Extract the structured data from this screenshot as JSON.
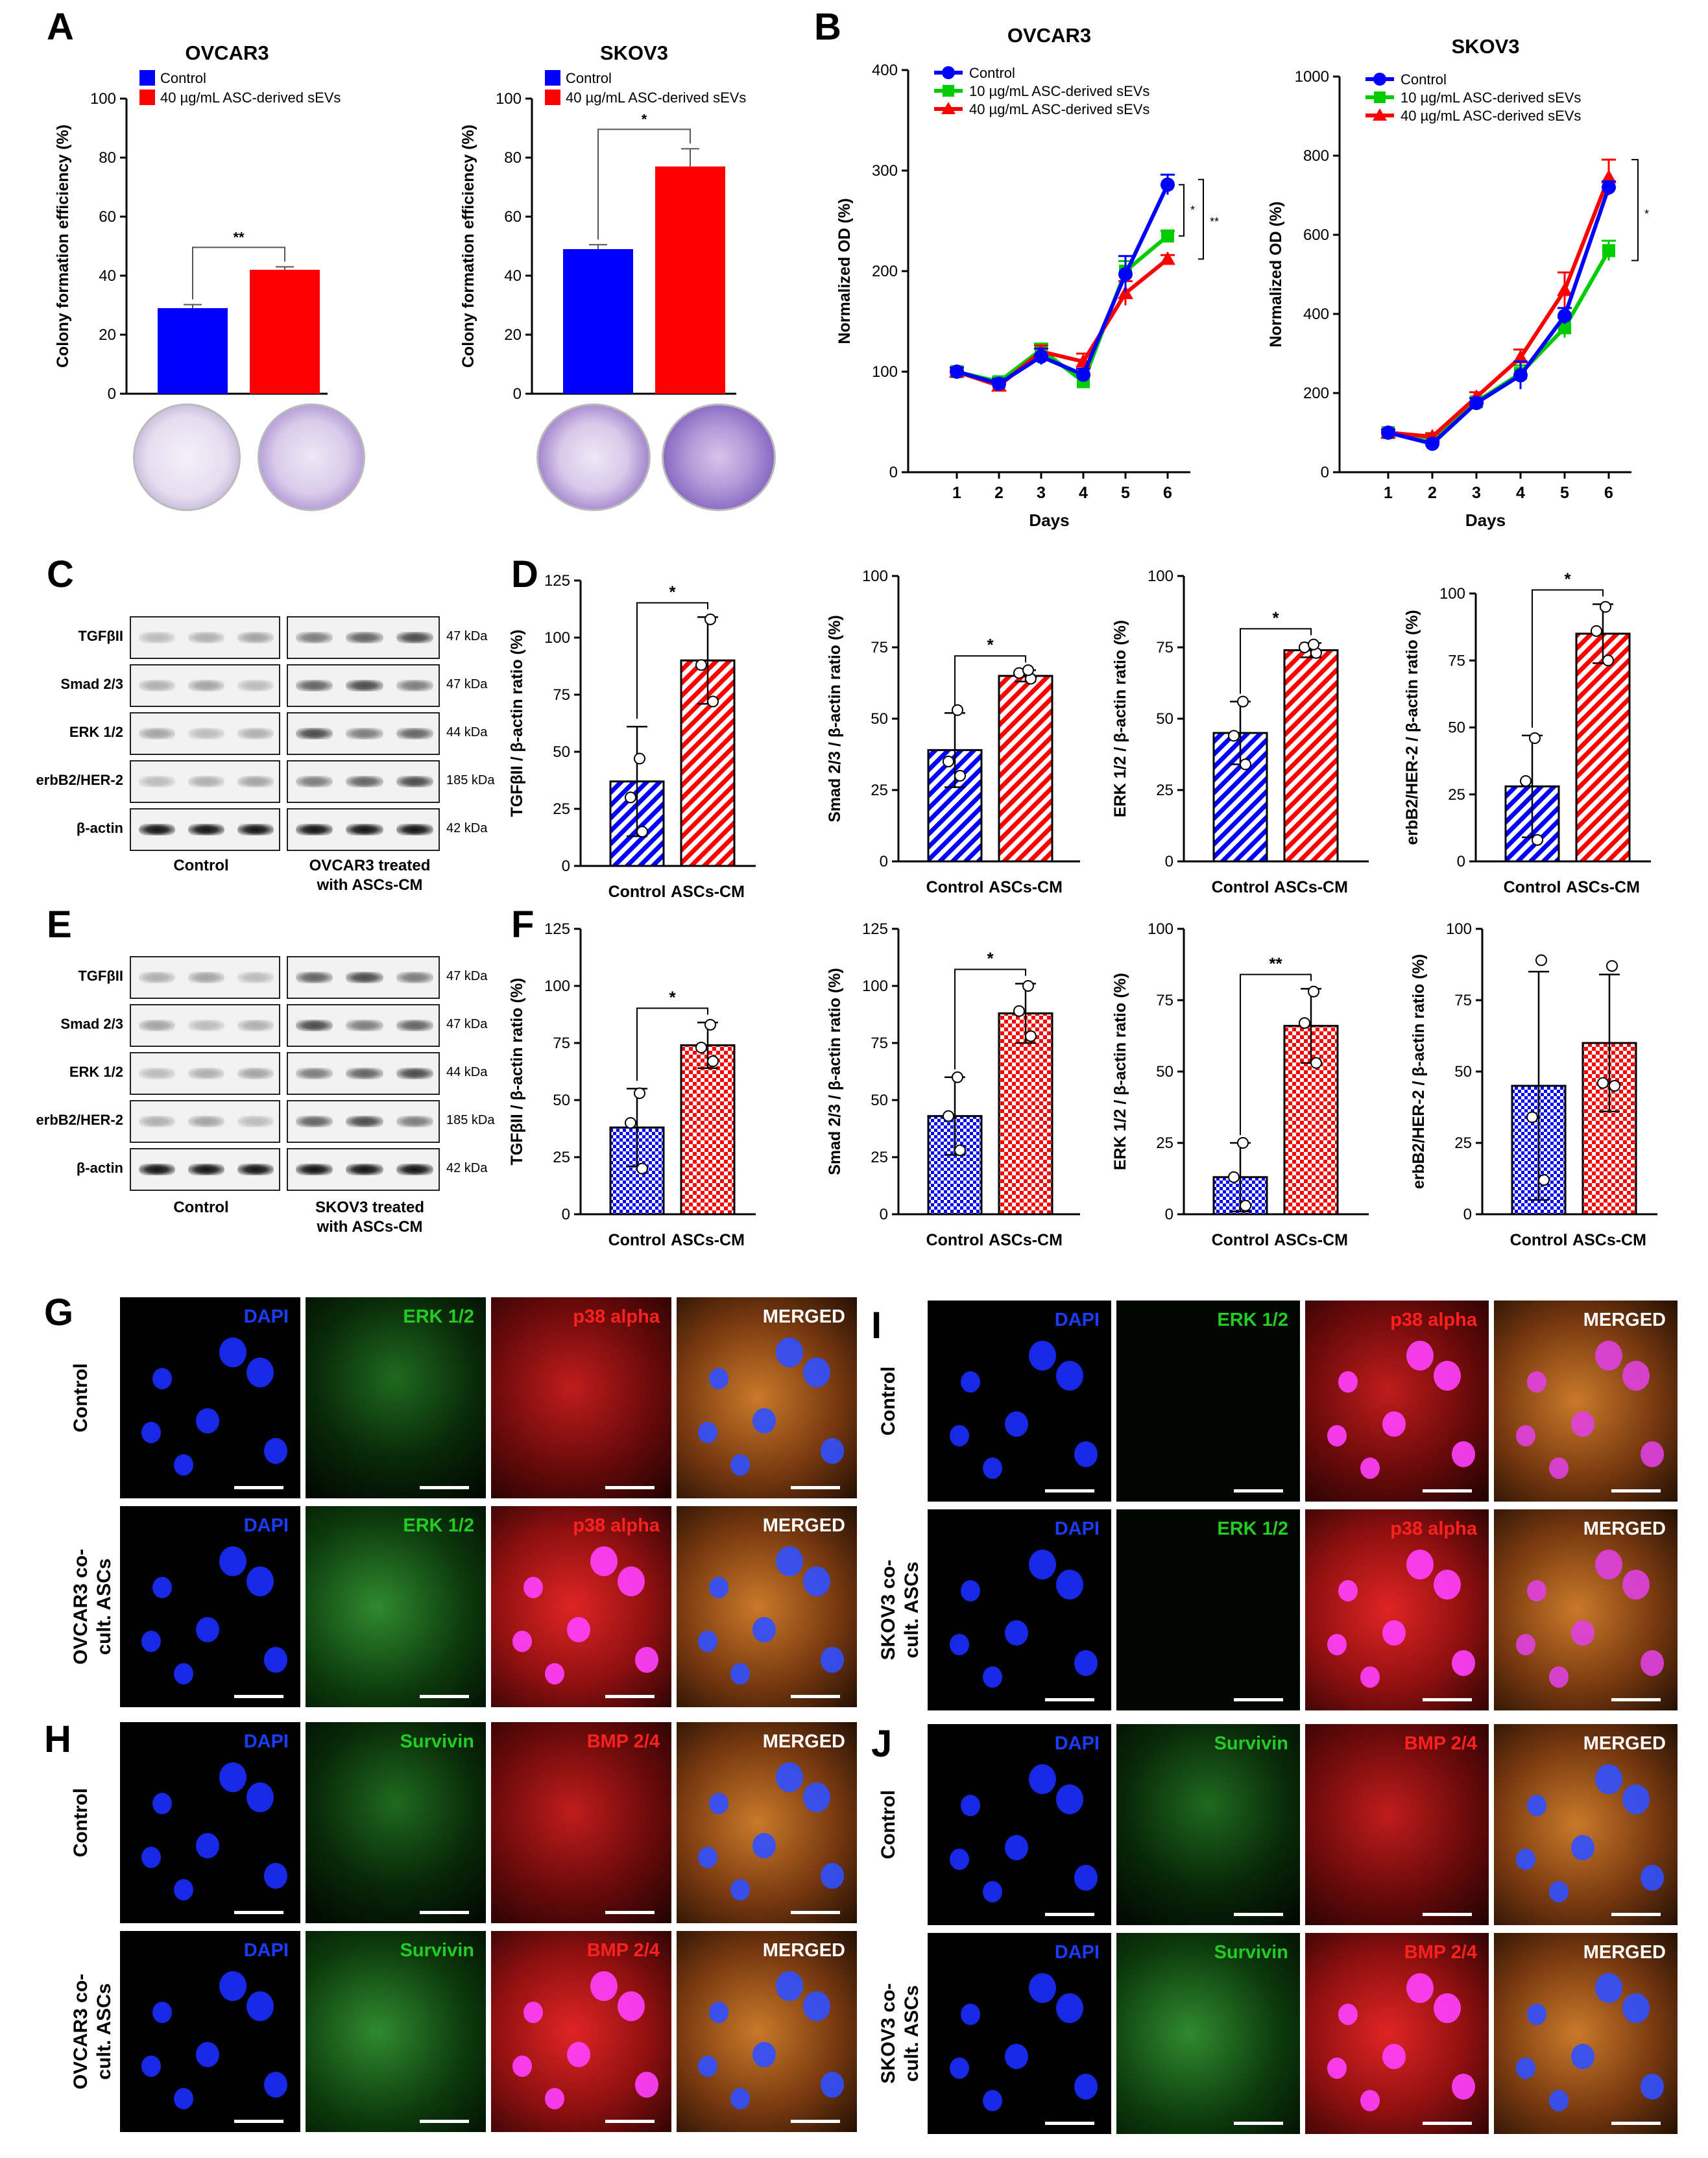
{
  "panel_letters": [
    "A",
    "B",
    "C",
    "D",
    "E",
    "F",
    "G",
    "H",
    "I",
    "J"
  ],
  "colors": {
    "control": "#0000ff",
    "treated": "#ff0000",
    "mid": "#00cc00",
    "dapi": "#1a3cff",
    "erk": "#22cc22",
    "p38": "#ff2020",
    "merged": "#ffffff"
  },
  "chart_data": [
    {
      "id": "A1",
      "type": "bar",
      "title": "OVCAR3",
      "ylabel": "Colony formation efficiency (%)",
      "ylim": [
        0,
        100
      ],
      "yticks": [
        0,
        20,
        40,
        60,
        80,
        100
      ],
      "legend": [
        "Control",
        "40 µg/mL ASC-derived sEVs"
      ],
      "categories": [
        "Control",
        "40 µg/mL ASC-derived sEVs"
      ],
      "values": [
        29,
        42
      ],
      "errors": [
        1.2,
        1.0
      ],
      "significance": "**"
    },
    {
      "id": "A2",
      "type": "bar",
      "title": "SKOV3",
      "ylabel": "Colony formation efficiency (%)",
      "ylim": [
        0,
        100
      ],
      "yticks": [
        0,
        20,
        40,
        60,
        80,
        100
      ],
      "legend": [
        "Control",
        "40 µg/mL ASC-derived sEVs"
      ],
      "categories": [
        "Control",
        "40 µg/mL ASC-derived sEVs"
      ],
      "values": [
        49,
        77
      ],
      "errors": [
        1.5,
        6
      ],
      "significance": "*"
    },
    {
      "id": "B1",
      "type": "line",
      "title": "OVCAR3",
      "xlabel": "Days",
      "ylabel": "Normalized OD (%)",
      "ylim": [
        0,
        400
      ],
      "yticks": [
        0,
        100,
        200,
        300,
        400
      ],
      "x": [
        1,
        2,
        3,
        4,
        5,
        6
      ],
      "series": [
        {
          "name": "Control",
          "values": [
            100,
            88,
            115,
            97,
            197,
            286
          ],
          "errors": [
            4,
            5,
            8,
            6,
            18,
            10
          ]
        },
        {
          "name": "10 µg/mL ASC-derived sEVs",
          "values": [
            100,
            90,
            122,
            90,
            200,
            235
          ],
          "errors": [
            4,
            4,
            6,
            6,
            10,
            5
          ]
        },
        {
          "name": "40 µg/mL ASC-derived sEVs",
          "values": [
            100,
            86,
            120,
            110,
            178,
            212
          ],
          "errors": [
            4,
            5,
            6,
            8,
            12,
            4
          ]
        }
      ],
      "significance": [
        "*",
        "**"
      ]
    },
    {
      "id": "B2",
      "type": "line",
      "title": "SKOV3",
      "xlabel": "Days",
      "ylabel": "Normalized OD (%)",
      "ylim": [
        0,
        1000
      ],
      "yticks": [
        0,
        200,
        400,
        600,
        800,
        1000
      ],
      "x": [
        1,
        2,
        3,
        4,
        5,
        6
      ],
      "series": [
        {
          "name": "Control",
          "values": [
            100,
            72,
            175,
            245,
            395,
            720
          ],
          "errors": [
            8,
            8,
            12,
            35,
            20,
            15
          ]
        },
        {
          "name": "10 µg/mL ASC-derived sEVs",
          "values": [
            100,
            85,
            178,
            250,
            365,
            560
          ],
          "errors": [
            8,
            8,
            10,
            20,
            25,
            25
          ]
        },
        {
          "name": "40 µg/mL ASC-derived sEVs",
          "values": [
            100,
            90,
            190,
            290,
            460,
            745
          ],
          "errors": [
            8,
            8,
            12,
            20,
            45,
            45
          ]
        }
      ],
      "significance": [
        "*"
      ]
    },
    {
      "id": "D1",
      "type": "bar",
      "ylabel": "TGFβII / β-actin ratio (%)",
      "ylim": [
        0,
        125
      ],
      "yticks": [
        0,
        25,
        50,
        75,
        100,
        125
      ],
      "categories": [
        "Control",
        "ASCs-CM"
      ],
      "values": [
        37,
        90
      ],
      "errors": [
        24,
        19
      ],
      "points": [
        [
          15,
          30,
          47
        ],
        [
          72,
          88,
          108
        ]
      ],
      "significance": "*",
      "pattern": "stripe"
    },
    {
      "id": "D2",
      "type": "bar",
      "ylabel": "Smad 2/3 / β-actin ratio (%)",
      "ylim": [
        0,
        100
      ],
      "yticks": [
        0,
        25,
        50,
        75,
        100
      ],
      "categories": [
        "Control",
        "ASCs-CM"
      ],
      "values": [
        39,
        65
      ],
      "errors": [
        13,
        2
      ],
      "points": [
        [
          30,
          35,
          53
        ],
        [
          64,
          66,
          67
        ]
      ],
      "significance": "*",
      "pattern": "stripe"
    },
    {
      "id": "D3",
      "type": "bar",
      "ylabel": "ERK 1/2 / β-actin ratio (%)",
      "ylim": [
        0,
        100
      ],
      "yticks": [
        0,
        25,
        50,
        75,
        100
      ],
      "categories": [
        "Control",
        "ASCs-CM"
      ],
      "values": [
        45,
        74
      ],
      "errors": [
        11,
        2.5
      ],
      "points": [
        [
          34,
          44,
          56
        ],
        [
          73,
          75,
          76
        ]
      ],
      "significance": "*",
      "pattern": "stripe"
    },
    {
      "id": "D4",
      "type": "bar",
      "ylabel": "erbB2/HER-2 / β-actin ratio (%)",
      "ylim": [
        0,
        100
      ],
      "yticks": [
        0,
        25,
        50,
        75,
        100
      ],
      "categories": [
        "Control",
        "ASCs-CM"
      ],
      "values": [
        28,
        85
      ],
      "errors": [
        19,
        11
      ],
      "points": [
        [
          8,
          30,
          46
        ],
        [
          75,
          86,
          95
        ]
      ],
      "significance": "*",
      "pattern": "stripe"
    },
    {
      "id": "F1",
      "type": "bar",
      "ylabel": "TGFβII / β-actin ratio (%)",
      "ylim": [
        0,
        125
      ],
      "yticks": [
        0,
        25,
        50,
        75,
        100,
        125
      ],
      "categories": [
        "Control",
        "ASCs-CM"
      ],
      "values": [
        38,
        74
      ],
      "errors": [
        17,
        10
      ],
      "points": [
        [
          20,
          40,
          53
        ],
        [
          67,
          73,
          83
        ]
      ],
      "significance": "*",
      "pattern": "check"
    },
    {
      "id": "F2",
      "type": "bar",
      "ylabel": "Smad 2/3 / β-actin ratio (%)",
      "ylim": [
        0,
        125
      ],
      "yticks": [
        0,
        25,
        50,
        75,
        100,
        125
      ],
      "categories": [
        "Control",
        "ASCs-CM"
      ],
      "values": [
        43,
        88
      ],
      "errors": [
        17,
        13
      ],
      "points": [
        [
          28,
          43,
          60
        ],
        [
          78,
          89,
          100
        ]
      ],
      "significance": "*",
      "pattern": "check"
    },
    {
      "id": "F3",
      "type": "bar",
      "ylabel": "ERK 1/2 / β-actin ratio (%)",
      "ylim": [
        0,
        100
      ],
      "yticks": [
        0,
        25,
        50,
        75,
        100
      ],
      "categories": [
        "Control",
        "ASCs-CM"
      ],
      "values": [
        13,
        66
      ],
      "errors": [
        12,
        13
      ],
      "points": [
        [
          3,
          13,
          25
        ],
        [
          53,
          67,
          78
        ]
      ],
      "significance": "**",
      "pattern": "check"
    },
    {
      "id": "F4",
      "type": "bar",
      "ylabel": "erbB2/HER-2 / β-actin ratio (%)",
      "ylim": [
        0,
        100
      ],
      "yticks": [
        0,
        25,
        50,
        75,
        100
      ],
      "categories": [
        "Control",
        "ASCs-CM"
      ],
      "values": [
        45,
        60
      ],
      "errors": [
        40,
        24
      ],
      "points": [
        [
          12,
          34,
          89
        ],
        [
          45,
          46,
          87
        ]
      ],
      "significance": "",
      "pattern": "check"
    }
  ],
  "western_c": {
    "proteins": [
      "TGFβII",
      "Smad 2/3",
      "ERK 1/2",
      "erbB2/HER-2",
      "β-actin"
    ],
    "kda": [
      "47 kDa",
      "47 kDa",
      "44 kDa",
      "185 kDa",
      "42 kDa"
    ],
    "group_left": "Control",
    "group_right": "OVCAR3 treated",
    "group_right2": "with ASCs-CM"
  },
  "western_e": {
    "proteins": [
      "TGFβII",
      "Smad 2/3",
      "ERK 1/2",
      "erbB2/HER-2",
      "β-actin"
    ],
    "kda": [
      "47 kDa",
      "47 kDa",
      "44 kDa",
      "185 kDa",
      "42 kDa"
    ],
    "group_left": "Control",
    "group_right": "SKOV3 treated",
    "group_right2": "with ASCs-CM"
  },
  "micro": {
    "G": {
      "channels": [
        "DAPI",
        "ERK 1/2",
        "p38 alpha",
        "MERGED"
      ],
      "row1": "Control",
      "row2a": "OVCAR3 co-",
      "row2b": "cult. ASCs"
    },
    "H": {
      "channels": [
        "DAPI",
        "Survivin",
        "BMP 2/4",
        "MERGED"
      ],
      "row1": "Control",
      "row2a": "OVCAR3 co-",
      "row2b": "cult. ASCs"
    },
    "I": {
      "channels": [
        "DAPI",
        "ERK 1/2",
        "p38 alpha",
        "MERGED"
      ],
      "row1": "Control",
      "row2a": "SKOV3 co-",
      "row2b": "cult. ASCs"
    },
    "J": {
      "channels": [
        "DAPI",
        "Survivin",
        "BMP 2/4",
        "MERGED"
      ],
      "row1": "Control",
      "row2a": "SKOV3 co-",
      "row2b": "cult. ASCs"
    }
  }
}
